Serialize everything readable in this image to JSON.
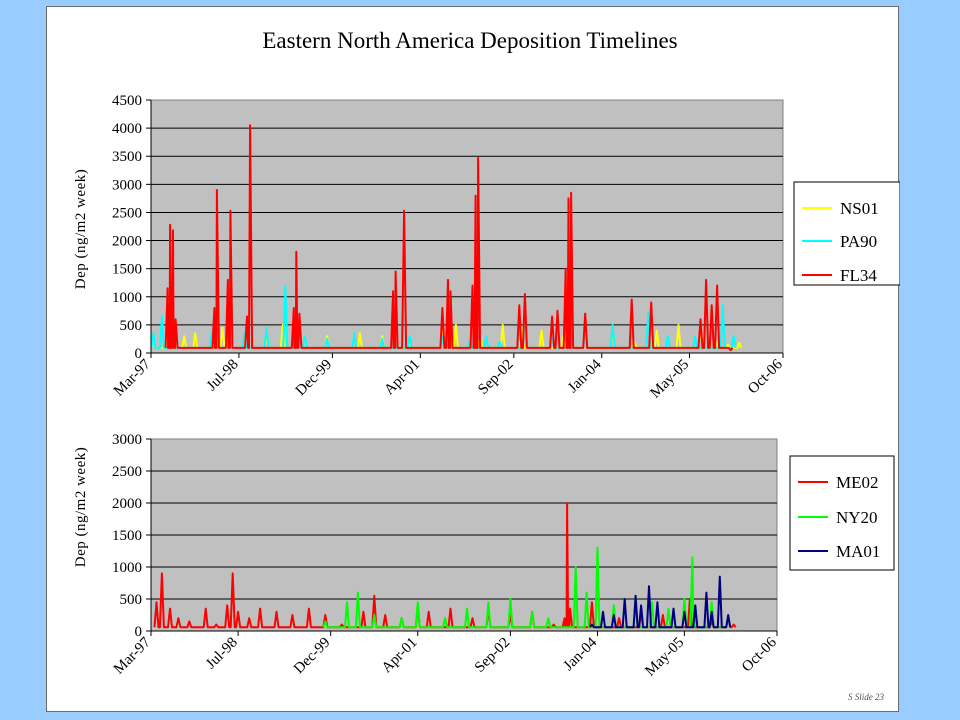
{
  "slide_label": "S Slide 23",
  "chart_data": [
    {
      "type": "line",
      "title": "Eastern North America Deposition Timelines",
      "ylabel": "Dep (ng/m2 week)",
      "xlabel": "",
      "x_range": [
        "1997-03-01",
        "2006-10-01"
      ],
      "x_tick_labels": [
        "Mar-97",
        "Jul-98",
        "Dec-99",
        "Apr-01",
        "Sep-02",
        "Jan-04",
        "May-05",
        "Oct-06"
      ],
      "x_tick_dates": [
        "1997-03-01",
        "1998-07-01",
        "1999-12-01",
        "2001-04-01",
        "2002-09-01",
        "2004-01-01",
        "2005-05-01",
        "2006-10-01"
      ],
      "ylim": [
        0,
        4500
      ],
      "y_ticks": [
        0,
        500,
        1000,
        1500,
        2000,
        2500,
        3000,
        3500,
        4000,
        4500
      ],
      "plot_background": "#c0c0c0",
      "legend_position": "right",
      "series": [
        {
          "name": "NS01",
          "color": "#ffff00",
          "x": [
            "1997-03-15",
            "1997-06-01",
            "1997-09-01",
            "1997-11-01",
            "1998-04-01",
            "1998-08-01",
            "1998-12-01",
            "1999-03-01",
            "1999-07-01",
            "1999-11-01",
            "2000-05-01",
            "2000-09-01",
            "2001-02-01",
            "2001-08-01",
            "2001-10-15",
            "2002-03-01",
            "2002-07-01",
            "2002-10-15",
            "2003-02-01",
            "2003-06-01",
            "2003-10-01",
            "2004-03-01",
            "2004-07-01",
            "2004-11-01",
            "2005-03-01",
            "2005-07-01",
            "2005-10-01",
            "2005-12-01",
            "2006-02-01"
          ],
          "y": [
            200,
            950,
            300,
            350,
            450,
            250,
            300,
            500,
            250,
            300,
            350,
            300,
            200,
            550,
            500,
            300,
            500,
            450,
            400,
            300,
            350,
            400,
            200,
            400,
            500,
            550,
            200,
            150,
            180
          ]
        },
        {
          "name": "PA90",
          "color": "#00ffff",
          "x": [
            "1997-03-15",
            "1997-05-01",
            "1997-07-01",
            "1998-02-01",
            "1998-08-01",
            "1998-12-01",
            "1999-03-15",
            "1999-07-01",
            "1999-11-01",
            "2000-04-01",
            "2000-09-01",
            "2001-02-01",
            "2001-08-01",
            "2002-01-01",
            "2002-04-01",
            "2002-06-15",
            "2002-11-01",
            "2003-04-01",
            "2003-10-01",
            "2004-03-01",
            "2004-09-15",
            "2005-01-01",
            "2005-06-01",
            "2005-11-01",
            "2006-01-01"
          ],
          "y": [
            350,
            650,
            550,
            400,
            350,
            450,
            1200,
            300,
            250,
            350,
            250,
            300,
            300,
            250,
            300,
            200,
            800,
            350,
            300,
            500,
            720,
            300,
            300,
            850,
            300
          ]
        },
        {
          "name": "FL34",
          "color": "#ff0000",
          "x": [
            "1997-06-01",
            "1997-06-15",
            "1997-07-01",
            "1997-07-15",
            "1998-02-15",
            "1998-03-01",
            "1998-05-01",
            "1998-05-15",
            "1998-08-15",
            "1998-09-01",
            "1999-05-01",
            "1999-05-15",
            "1999-06-01",
            "2000-11-01",
            "2000-11-15",
            "2001-01-01",
            "2001-08-01",
            "2001-09-01",
            "2001-09-15",
            "2002-01-15",
            "2002-02-01",
            "2002-02-15",
            "2002-10-01",
            "2002-11-01",
            "2003-04-01",
            "2003-05-01",
            "2003-06-15",
            "2003-07-01",
            "2003-07-15",
            "2003-10-01",
            "2004-06-15",
            "2004-10-01",
            "2005-07-01",
            "2005-08-01",
            "2005-09-01",
            "2005-10-01",
            "2005-12-15"
          ],
          "y": [
            1150,
            2280,
            2180,
            600,
            800,
            2900,
            1300,
            2530,
            650,
            4050,
            800,
            1800,
            700,
            1100,
            1450,
            2530,
            800,
            1300,
            1100,
            1200,
            2800,
            3470,
            850,
            1050,
            650,
            750,
            1500,
            2750,
            2850,
            700,
            950,
            900,
            600,
            1300,
            850,
            1200,
            50
          ]
        }
      ]
    },
    {
      "type": "line",
      "title": "",
      "ylabel": "Dep (ng/m2 week)",
      "xlabel": "",
      "x_range": [
        "1997-03-01",
        "2006-10-01"
      ],
      "x_tick_labels": [
        "Mar-97",
        "Jul-98",
        "Dec-99",
        "Apr-01",
        "Sep-02",
        "Jan-04",
        "May-05",
        "Oct-06"
      ],
      "x_tick_dates": [
        "1997-03-01",
        "1998-07-01",
        "1999-12-01",
        "2001-04-01",
        "2002-09-01",
        "2004-01-01",
        "2005-05-01",
        "2006-10-01"
      ],
      "ylim": [
        0,
        3000
      ],
      "y_ticks": [
        0,
        500,
        1000,
        1500,
        2000,
        2500,
        3000
      ],
      "plot_background": "#c0c0c0",
      "legend_position": "right",
      "series": [
        {
          "name": "ME02",
          "color": "#ff0000",
          "x": [
            "1997-04-01",
            "1997-05-01",
            "1997-06-15",
            "1997-08-01",
            "1997-10-01",
            "1998-01-01",
            "1998-03-01",
            "1998-05-01",
            "1998-06-01",
            "1998-07-01",
            "1998-09-01",
            "1998-11-01",
            "1999-02-01",
            "1999-05-01",
            "1999-08-01",
            "1999-11-01",
            "2000-02-01",
            "2000-06-01",
            "2000-08-01",
            "2000-10-01",
            "2001-01-01",
            "2001-04-01",
            "2001-06-01",
            "2001-10-01",
            "2002-02-01",
            "2002-05-01",
            "2002-09-01",
            "2003-01-01",
            "2003-05-01",
            "2003-07-01",
            "2003-07-15",
            "2003-08-01",
            "2003-12-01",
            "2004-05-01",
            "2004-09-01",
            "2005-01-01",
            "2005-06-01",
            "2005-10-01",
            "2006-01-01",
            "2006-02-01"
          ],
          "y": [
            450,
            900,
            350,
            200,
            150,
            350,
            100,
            400,
            900,
            300,
            200,
            350,
            300,
            250,
            350,
            250,
            100,
            300,
            550,
            250,
            200,
            400,
            300,
            350,
            200,
            350,
            250,
            300,
            100,
            200,
            2000,
            350,
            450,
            200,
            300,
            250,
            500,
            150,
            200,
            100
          ]
        },
        {
          "name": "NY20",
          "color": "#00ff00",
          "x": [
            "1999-11-01",
            "2000-03-01",
            "2000-05-01",
            "2000-08-01",
            "2001-01-01",
            "2001-04-01",
            "2001-09-01",
            "2002-01-01",
            "2002-05-01",
            "2002-09-01",
            "2003-01-01",
            "2003-04-01",
            "2003-09-01",
            "2003-11-01",
            "2004-01-01",
            "2004-04-01",
            "2004-08-01",
            "2004-11-01",
            "2005-02-01",
            "2005-05-01",
            "2005-06-15",
            "2005-07-01",
            "2005-10-01",
            "2006-01-01"
          ],
          "y": [
            150,
            450,
            600,
            250,
            200,
            450,
            200,
            350,
            450,
            500,
            300,
            200,
            1000,
            600,
            1300,
            400,
            550,
            450,
            350,
            500,
            1150,
            400,
            450,
            200
          ]
        },
        {
          "name": "MA01",
          "color": "#000080",
          "x": [
            "2003-12-01",
            "2004-02-01",
            "2004-04-01",
            "2004-06-01",
            "2004-08-01",
            "2004-09-01",
            "2004-10-15",
            "2004-12-01",
            "2005-03-01",
            "2005-05-01",
            "2005-07-01",
            "2005-09-01",
            "2005-10-01",
            "2005-11-15",
            "2006-01-01"
          ],
          "y": [
            100,
            300,
            250,
            500,
            550,
            400,
            700,
            450,
            350,
            300,
            400,
            600,
            300,
            850,
            250
          ]
        }
      ]
    }
  ]
}
